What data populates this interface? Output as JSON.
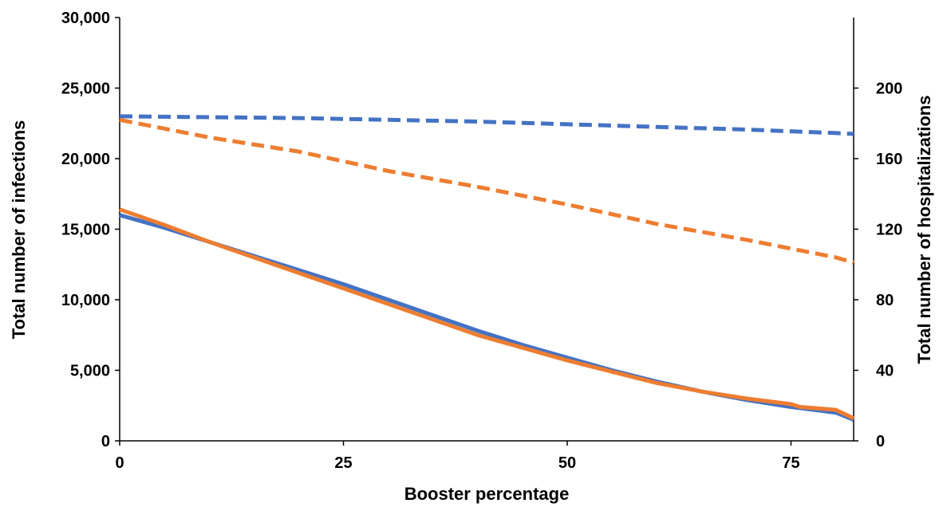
{
  "chart_data": {
    "type": "line",
    "xlabel": "Booster percentage",
    "ylabel_left": "Total number of infections",
    "ylabel_right": "Total number of hospitalizations",
    "xlim": [
      0,
      82
    ],
    "ylim_left": [
      0,
      30000
    ],
    "ylim_right": [
      0,
      240
    ],
    "x_ticks": [
      "0",
      "25",
      "50",
      "75"
    ],
    "x_tick_values": [
      0,
      25,
      50,
      75
    ],
    "y_left_ticks": [
      "0",
      "5,000",
      "10,000",
      "15,000",
      "20,000",
      "25,000",
      "30,000"
    ],
    "y_left_tick_values": [
      0,
      5000,
      10000,
      15000,
      20000,
      25000,
      30000
    ],
    "y_right_ticks": [
      "0",
      "40",
      "80",
      "120",
      "160",
      "200"
    ],
    "y_right_tick_values": [
      0,
      40,
      80,
      120,
      160,
      200
    ],
    "grid": false,
    "legend": "none",
    "series": [
      {
        "axis": "left",
        "style": "solid",
        "color": "#4472C4",
        "x": [
          0,
          5,
          10,
          15,
          20,
          25,
          30,
          35,
          40,
          45,
          50,
          55,
          60,
          65,
          70,
          75,
          80,
          82
        ],
        "y": [
          16000,
          15100,
          14100,
          13100,
          12100,
          11100,
          10000,
          8900,
          7800,
          6800,
          5900,
          5000,
          4200,
          3500,
          2900,
          2400,
          2000,
          1500
        ]
      },
      {
        "axis": "left",
        "style": "solid",
        "color": "#ED7D31",
        "x": [
          0,
          5,
          10,
          15,
          20,
          25,
          30,
          35,
          40,
          45,
          50,
          55,
          60,
          65,
          70,
          75,
          76,
          80,
          82
        ],
        "y": [
          16400,
          15300,
          14100,
          13000,
          11900,
          10800,
          9700,
          8600,
          7500,
          6600,
          5700,
          4900,
          4100,
          3500,
          3000,
          2600,
          2400,
          2200,
          1600
        ]
      },
      {
        "axis": "right",
        "style": "dashed",
        "color": "#4472C4",
        "x": [
          0,
          10,
          20,
          30,
          40,
          50,
          60,
          70,
          80,
          82
        ],
        "y": [
          184,
          183.5,
          183,
          182,
          181,
          179.5,
          178,
          176.5,
          174.5,
          174
        ]
      },
      {
        "axis": "right",
        "style": "dashed",
        "color": "#ED7D31",
        "x": [
          0,
          10,
          20,
          30,
          40,
          50,
          60,
          70,
          80,
          82
        ],
        "y": [
          182,
          172,
          164,
          153,
          144,
          134,
          123,
          114,
          104,
          101
        ]
      }
    ]
  }
}
